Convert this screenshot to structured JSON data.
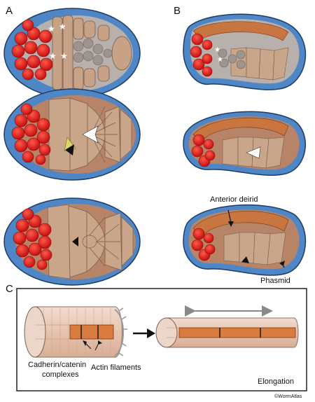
{
  "panels": {
    "a": "A",
    "b": "B",
    "c": "C"
  },
  "labels": {
    "anterior_deirid": "Anterior deirid",
    "phasmid": "Phasmid",
    "cadherin": "Cadherin/catenin",
    "complexes": "complexes",
    "actin": "Actin filaments",
    "elongation": "Elongation",
    "credit": "©WormAtlas"
  },
  "colors": {
    "eggshell": "#4f86c6",
    "seam_cell": "#c8753f",
    "hypodermis": "#c9a58a",
    "gut_cell": "#e02020",
    "interior": "#b7b0ac"
  }
}
